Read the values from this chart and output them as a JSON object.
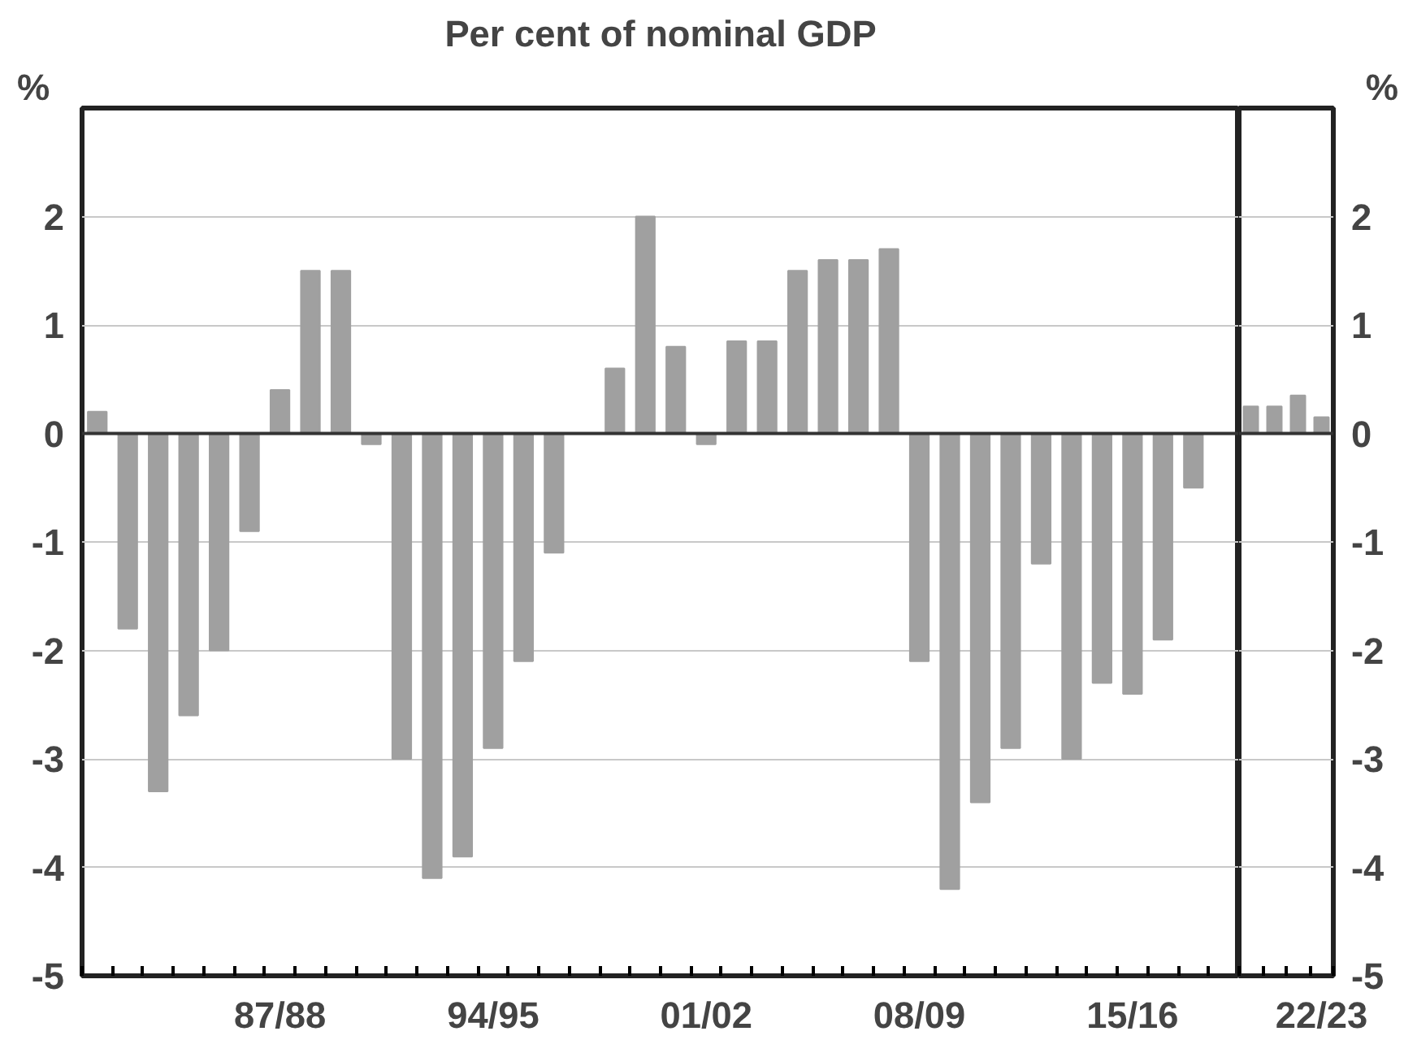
{
  "chart_data": [
    {
      "type": "bar",
      "title": "Per cent of nominal GDP",
      "ylabel": "%",
      "categories": [
        null,
        null,
        null,
        null,
        null,
        null,
        "87/88",
        null,
        null,
        null,
        null,
        null,
        null,
        "94/95",
        null,
        null,
        null,
        null,
        null,
        null,
        "01/02",
        null,
        null,
        null,
        null,
        null,
        null,
        "08/09",
        null,
        null,
        null,
        null,
        null,
        null,
        "15/16",
        null,
        null,
        null
      ],
      "values": [
        0.2,
        -1.8,
        -3.3,
        -2.6,
        -2.0,
        -0.9,
        0.4,
        1.5,
        1.5,
        -0.1,
        -3.0,
        -4.1,
        -3.9,
        -2.9,
        -2.1,
        -1.1,
        0,
        0.6,
        2.0,
        0.8,
        -0.1,
        0.85,
        0.85,
        1.5,
        1.6,
        1.6,
        1.7,
        -2.1,
        -4.2,
        -3.4,
        -2.9,
        -1.2,
        -3.0,
        -2.3,
        -2.4,
        -1.9,
        -0.5,
        0
      ],
      "color": "#a0a0a0",
      "ylim": [
        -5,
        3
      ],
      "yticks": [
        -5,
        -4,
        -3,
        -2,
        -1,
        0,
        1,
        2
      ],
      "grid": "y",
      "tick_labels": "xy"
    },
    {
      "type": "bar",
      "ylabel": "%",
      "categories": [
        null,
        null,
        null,
        "22/23"
      ],
      "values": [
        0.25,
        0.25,
        0.35,
        0.15
      ],
      "color": "#a0a0a0",
      "ylim": [
        -5,
        3
      ],
      "yticks": [
        -5,
        -4,
        -3,
        -2,
        -1,
        0,
        1,
        2
      ],
      "grid": "y",
      "tick_labels": "xy"
    }
  ]
}
